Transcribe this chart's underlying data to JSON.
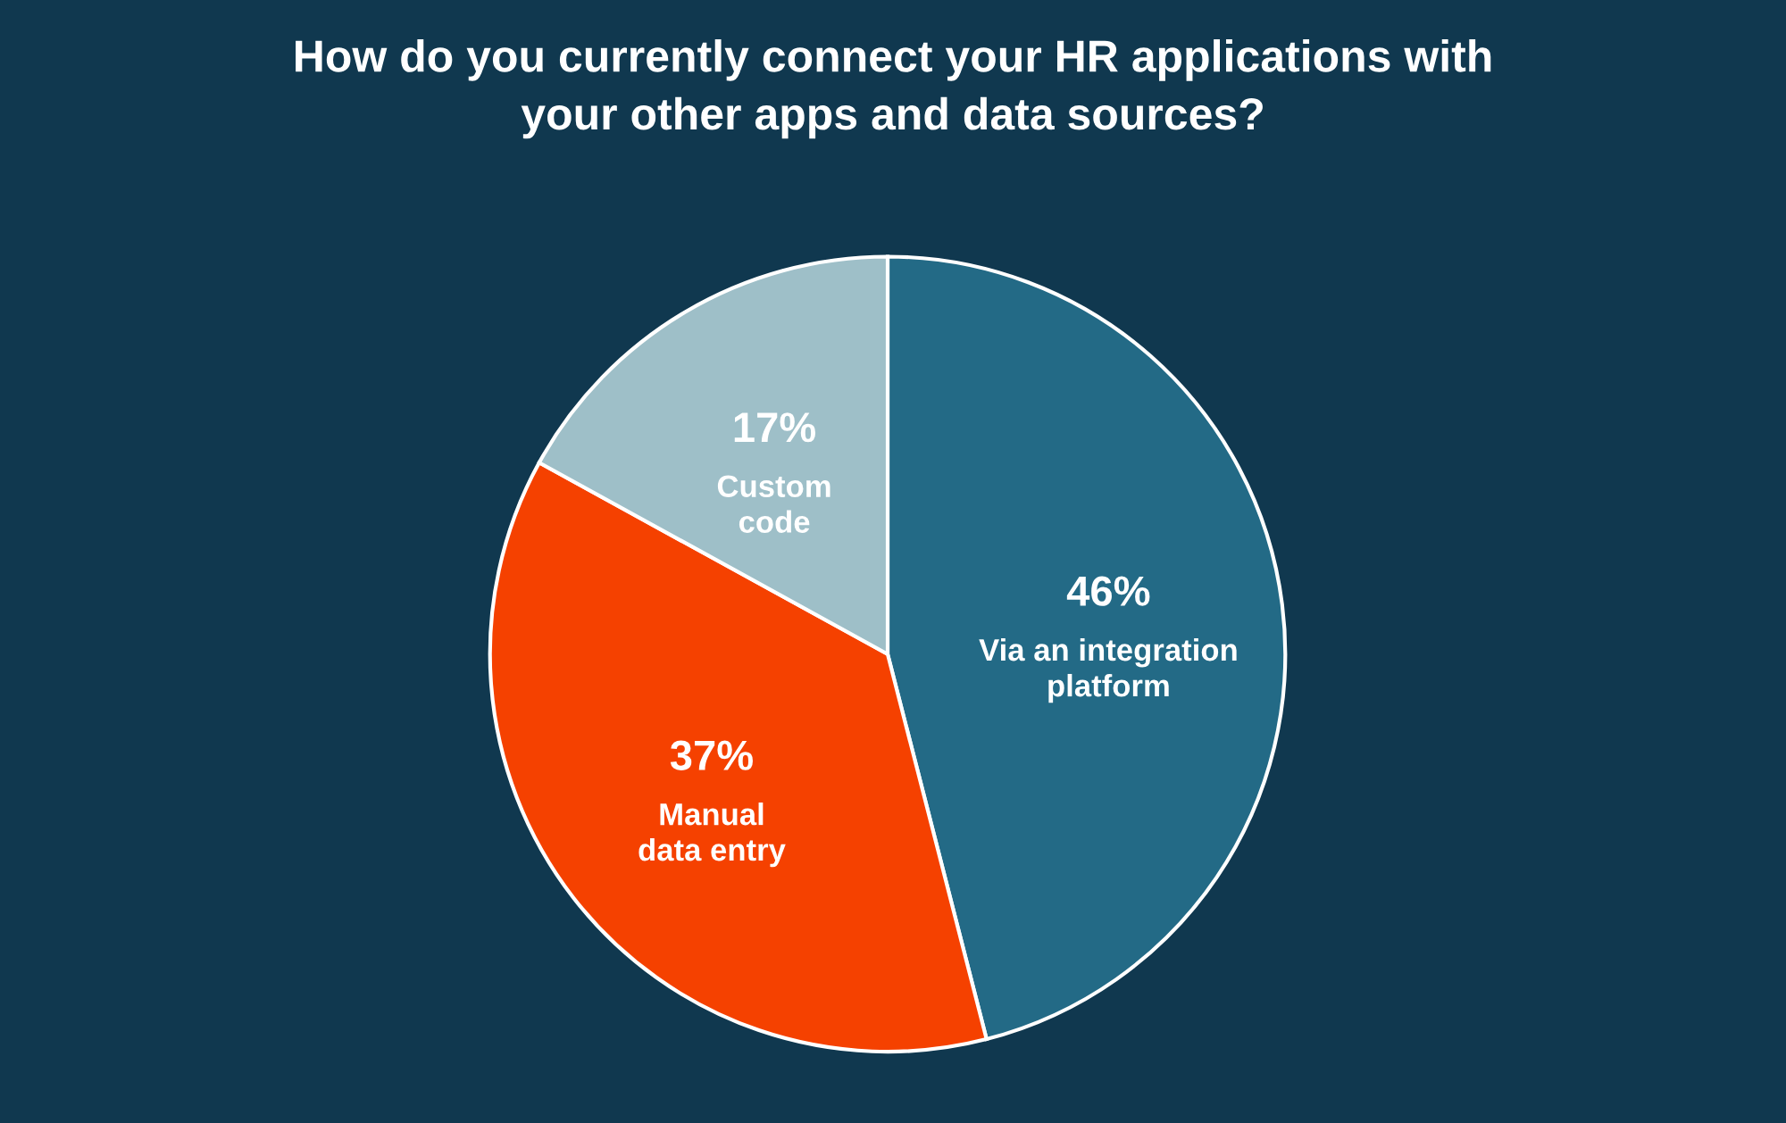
{
  "chart_data": {
    "type": "pie",
    "title": "How do you currently connect your HR applications with\nyour other apps and data sources?",
    "categories": [
      "Via an integration\nplatform",
      "Manual\ndata entry",
      "Custom\ncode"
    ],
    "values": [
      46,
      37,
      17
    ],
    "colors": [
      "#236a86",
      "#f54100",
      "#9ebfc8"
    ],
    "value_labels": [
      "46%",
      "37%",
      "17%"
    ]
  }
}
